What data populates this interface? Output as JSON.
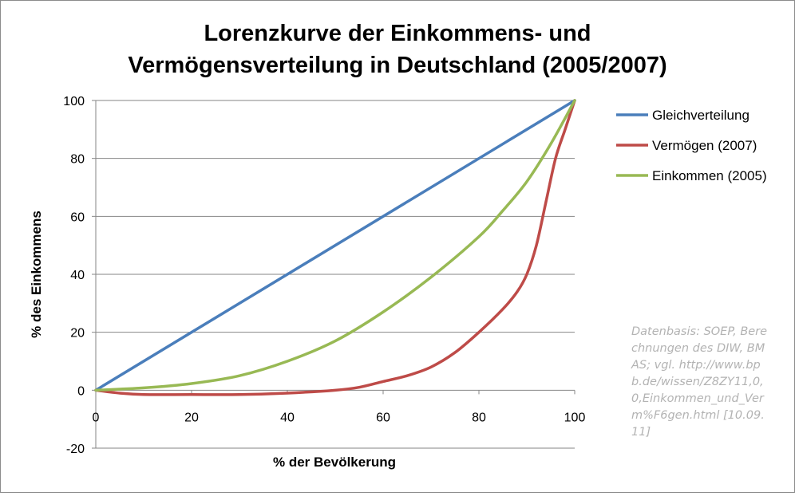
{
  "chart_data": {
    "type": "line",
    "title": [
      "Lorenzkurve der Einkommens- und",
      "Vermögensverteilung in Deutschland (2005/2007)"
    ],
    "xlabel": "% der Bevölkerung",
    "ylabel": "% des Einkommens",
    "xlim": [
      0,
      100
    ],
    "ylim": [
      -20,
      100
    ],
    "x_ticks": [
      0,
      20,
      40,
      60,
      80,
      100
    ],
    "y_ticks": [
      -20,
      0,
      20,
      40,
      60,
      80,
      100
    ],
    "grid": "horizontal",
    "legend_position": "right",
    "series": [
      {
        "name": "Gleichverteilung",
        "color": "#4a7ebb",
        "x": [
          0,
          100
        ],
        "y": [
          0,
          100
        ]
      },
      {
        "name": "Vermögen (2007)",
        "color": "#be4b48",
        "x": [
          0,
          5,
          10,
          20,
          30,
          40,
          50,
          55,
          60,
          65,
          70,
          75,
          80,
          85,
          88,
          90,
          92,
          94,
          96,
          98,
          100
        ],
        "y": [
          0,
          -1,
          -1.5,
          -1.5,
          -1.5,
          -1,
          0,
          1,
          3,
          5,
          8,
          13,
          20,
          28,
          34,
          40,
          50,
          65,
          80,
          90,
          100
        ]
      },
      {
        "name": "Einkommen (2005)",
        "color": "#98b954",
        "x": [
          0,
          10,
          20,
          30,
          40,
          50,
          60,
          70,
          80,
          85,
          90,
          95,
          100
        ],
        "y": [
          0,
          0.8,
          2.3,
          5,
          10,
          17,
          27,
          39,
          53,
          62,
          72,
          85,
          100
        ]
      }
    ]
  },
  "source_note": "Datenbasis: SOEP, Berechnungen des DIW, BMAS; vgl. http://www.bpb.de/wissen/Z8ZY11,0,0,Einkommen_und_Verm%F6gen.html [10.09.11]"
}
